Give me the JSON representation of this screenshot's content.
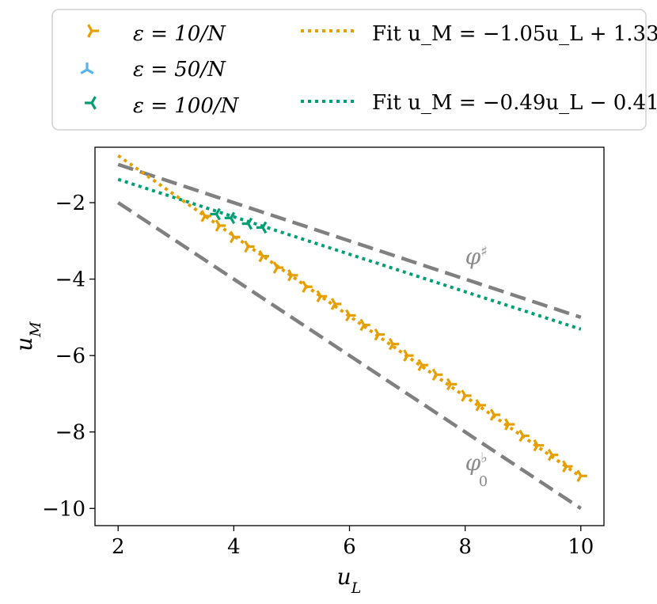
{
  "chart_data": {
    "type": "line",
    "xlabel": "u_L",
    "ylabel": "u_M",
    "xlim": [
      1.6,
      10.4
    ],
    "ylim": [
      -10.45,
      -0.55
    ],
    "xticks": [
      2,
      4,
      6,
      8,
      10
    ],
    "yticks": [
      -2,
      -4,
      -6,
      -8,
      -10
    ],
    "xtick_labels": [
      "2",
      "4",
      "6",
      "8",
      "10"
    ],
    "ytick_labels": [
      "−2",
      "−4",
      "−6",
      "−8",
      "−10"
    ],
    "grid": false,
    "legend_position": "top (above plot)",
    "colors": {
      "eps10": "#E69F00",
      "eps50": "#56B4E9",
      "eps100": "#009E73",
      "bound": "#808080"
    },
    "series": [
      {
        "name": "eps10",
        "label": "ε = 10/N",
        "kind": "markers",
        "marker": "tri-right",
        "x": [
          3.5,
          3.75,
          4.0,
          4.25,
          4.5,
          4.75,
          5.0,
          5.25,
          5.5,
          5.75,
          6.0,
          6.25,
          6.5,
          6.75,
          7.0,
          7.25,
          7.5,
          7.75,
          8.0,
          8.25,
          8.5,
          8.75,
          9.0,
          9.25,
          9.5,
          9.75,
          10.0
        ],
        "y": [
          -2.35,
          -2.6,
          -2.9,
          -3.15,
          -3.4,
          -3.7,
          -3.9,
          -4.2,
          -4.45,
          -4.65,
          -4.95,
          -5.2,
          -5.45,
          -5.7,
          -6.0,
          -6.25,
          -6.5,
          -6.75,
          -7.05,
          -7.3,
          -7.55,
          -7.8,
          -8.1,
          -8.35,
          -8.6,
          -8.9,
          -9.15
        ]
      },
      {
        "name": "eps50",
        "label": "ε = 50/N",
        "kind": "markers",
        "marker": "tri-up",
        "x": [],
        "y": []
      },
      {
        "name": "eps100",
        "label": "ε = 100/N",
        "kind": "markers",
        "marker": "tri-left",
        "x": [
          3.7,
          3.95,
          4.25,
          4.5
        ],
        "y": [
          -2.3,
          -2.4,
          -2.55,
          -2.65
        ]
      },
      {
        "name": "fit10",
        "label": "Fit u_M = −1.05u_L + 1.33",
        "kind": "fit",
        "slope": -1.05,
        "intercept": 1.33,
        "x_range": [
          2,
          10
        ]
      },
      {
        "name": "fit100",
        "label": "Fit u_M = −0.49u_L − 0.41",
        "kind": "fit",
        "slope": -0.49,
        "intercept": -0.41,
        "x_range": [
          2,
          10
        ]
      },
      {
        "name": "phi_sharp",
        "label": "φ♯",
        "kind": "bound",
        "x": [
          2,
          10
        ],
        "y": [
          -1,
          -5
        ]
      },
      {
        "name": "phi_flat",
        "label": "φ♭0",
        "kind": "bound",
        "x": [
          2,
          10
        ],
        "y": [
          -2,
          -10
        ]
      }
    ],
    "annotations": [
      {
        "name": "phi-sharp-label",
        "base": "φ",
        "sup": "♯",
        "sub": "",
        "at": [
          8.0,
          -3.6
        ]
      },
      {
        "name": "phi-flat-label",
        "base": "φ",
        "sup": "♭",
        "sub": "0",
        "at": [
          8.0,
          -9.0
        ]
      }
    ]
  }
}
